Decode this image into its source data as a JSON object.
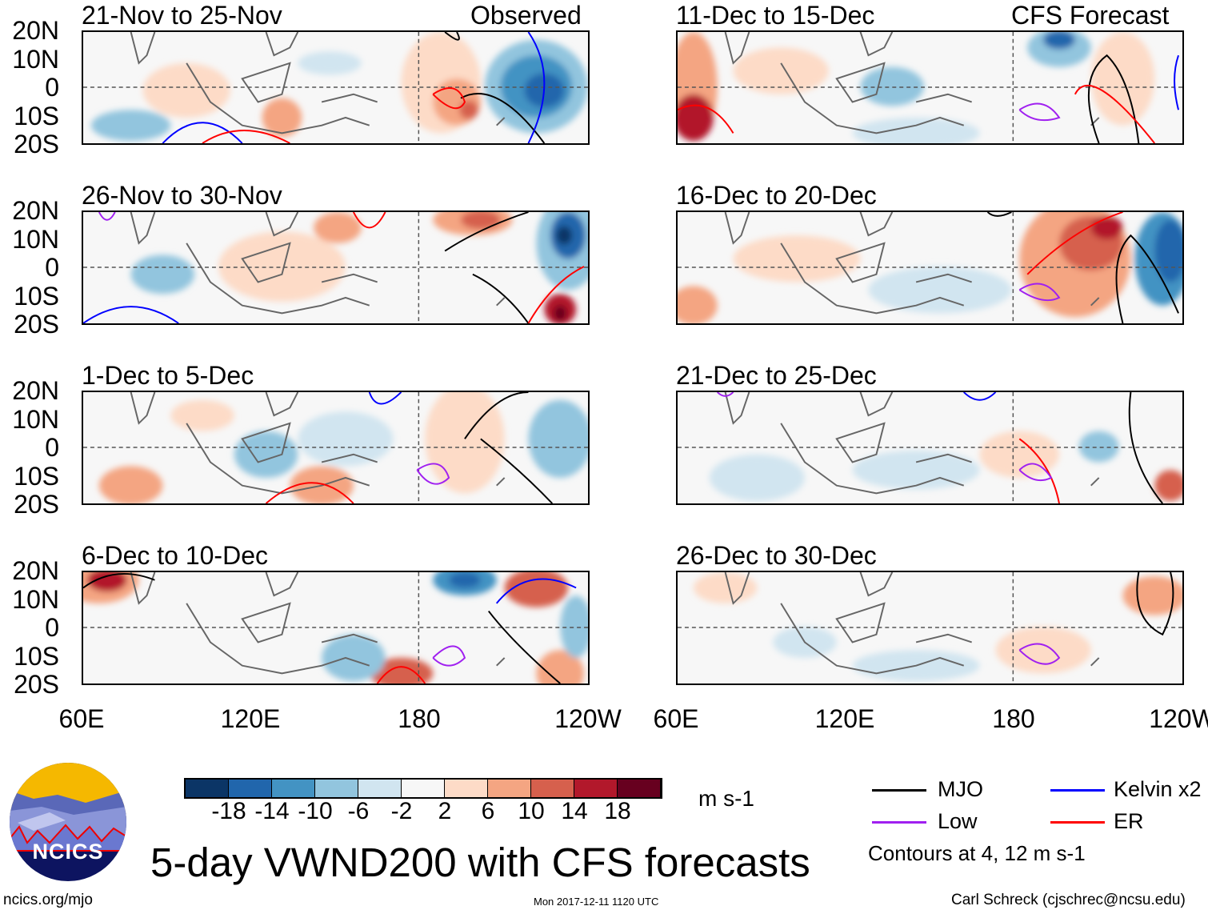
{
  "figure_title": "5-day VWND200 with CFS forecasts",
  "labels": {
    "observed": "Observed",
    "forecast": "CFS Forecast"
  },
  "panels_left": [
    {
      "title": "21-Nov to 25-Nov"
    },
    {
      "title": "26-Nov to 30-Nov"
    },
    {
      "title": "1-Dec to 5-Dec"
    },
    {
      "title": "6-Dec to 10-Dec"
    }
  ],
  "panels_right": [
    {
      "title": "11-Dec to 15-Dec"
    },
    {
      "title": "16-Dec to 20-Dec"
    },
    {
      "title": "21-Dec to 25-Dec"
    },
    {
      "title": "26-Dec to 30-Dec"
    }
  ],
  "lat_labels": [
    "20N",
    "10N",
    "0",
    "10S",
    "20S"
  ],
  "lon_labels": [
    "60E",
    "120E",
    "180",
    "120W"
  ],
  "colorbar": {
    "colors": [
      "#0b3566",
      "#2166ac",
      "#4393c3",
      "#92c5de",
      "#d1e5f0",
      "#f7f7f7",
      "#fddbc7",
      "#f4a582",
      "#d6604d",
      "#b2182b",
      "#67001f"
    ],
    "ticks": [
      "-18",
      "-14",
      "-10",
      "-6",
      "-2",
      "2",
      "6",
      "10",
      "14",
      "18"
    ],
    "units": "m s-1"
  },
  "legend": {
    "items": [
      {
        "label": "MJO",
        "color": "#000000"
      },
      {
        "label": "Kelvin x2",
        "color": "#0000ff"
      },
      {
        "label": "Low",
        "color": "#a020f0"
      },
      {
        "label": "ER",
        "color": "#ff0000"
      }
    ],
    "note": "Contours at 4, 12 m s-1"
  },
  "logo": {
    "text": "NCICS"
  },
  "footer": {
    "url": "ncics.org/mjo",
    "timestamp": "Mon 2017-12-11 1120 UTC",
    "author": "Carl Schreck (cjschrec@ncsu.edu)"
  }
}
